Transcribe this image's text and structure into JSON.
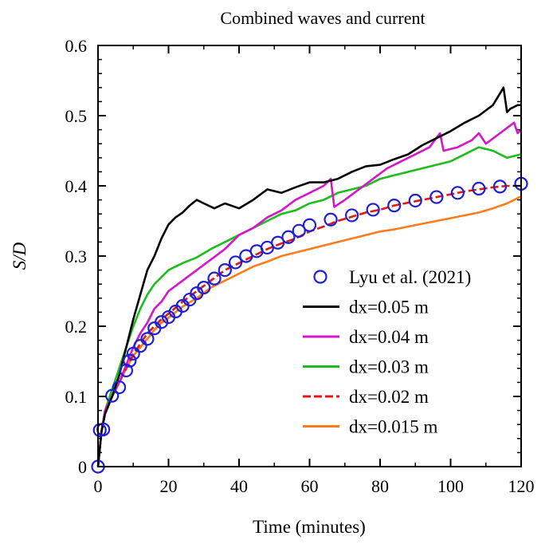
{
  "chart_data": {
    "type": "line",
    "title": "Combined waves and current",
    "xlabel": "Time (minutes)",
    "ylabel": "S/D",
    "xlim": [
      0,
      120
    ],
    "ylim": [
      0,
      0.6
    ],
    "x_ticks": [
      "0",
      "20",
      "40",
      "60",
      "80",
      "100",
      "120"
    ],
    "y_ticks": [
      "0",
      "0.1",
      "0.2",
      "0.3",
      "0.4",
      "0.5",
      "0.6"
    ],
    "grid": false,
    "legend_position": "lower-right",
    "series": [
      {
        "name": "Lyu et al. (2021)",
        "type": "scatter",
        "marker": "open-circle",
        "color": "#1f1fd6",
        "x": [
          0,
          0.5,
          1.5,
          4,
          6,
          8,
          9,
          10,
          12,
          14,
          16,
          18,
          20,
          22,
          24,
          26,
          28,
          30,
          33,
          36,
          39,
          42,
          45,
          48,
          51,
          54,
          57,
          60,
          66,
          72,
          78,
          84,
          90,
          96,
          102,
          108,
          114,
          120
        ],
        "y": [
          0,
          0.052,
          0.053,
          0.101,
          0.113,
          0.137,
          0.151,
          0.161,
          0.172,
          0.182,
          0.197,
          0.206,
          0.213,
          0.221,
          0.229,
          0.238,
          0.247,
          0.255,
          0.268,
          0.28,
          0.291,
          0.3,
          0.307,
          0.312,
          0.319,
          0.327,
          0.336,
          0.344,
          0.352,
          0.358,
          0.366,
          0.372,
          0.379,
          0.384,
          0.39,
          0.396,
          0.399,
          0.403
        ]
      },
      {
        "name": "dx=0.05 m",
        "color": "#000000",
        "x": [
          0,
          1,
          2,
          4,
          6,
          8,
          10,
          12,
          14,
          16,
          18,
          20,
          22,
          24,
          26,
          28,
          30,
          33,
          36,
          40,
          44,
          48,
          52,
          56,
          60,
          64,
          68,
          72,
          76,
          80,
          84,
          88,
          92,
          96,
          100,
          104,
          108,
          112,
          115,
          116,
          117,
          119,
          120
        ],
        "y": [
          0,
          0.05,
          0.075,
          0.1,
          0.13,
          0.17,
          0.21,
          0.245,
          0.28,
          0.3,
          0.325,
          0.345,
          0.355,
          0.362,
          0.372,
          0.38,
          0.375,
          0.368,
          0.375,
          0.368,
          0.38,
          0.395,
          0.39,
          0.398,
          0.405,
          0.405,
          0.41,
          0.42,
          0.428,
          0.43,
          0.438,
          0.445,
          0.458,
          0.468,
          0.478,
          0.49,
          0.5,
          0.515,
          0.54,
          0.505,
          0.51,
          0.515,
          0.515
        ]
      },
      {
        "name": "dx=0.04 m",
        "color": "#d616c8",
        "x": [
          0,
          1,
          2,
          4,
          6,
          8,
          10,
          12,
          14,
          16,
          18,
          20,
          24,
          28,
          32,
          36,
          40,
          44,
          48,
          52,
          56,
          60,
          64,
          66,
          67,
          70,
          74,
          78,
          82,
          86,
          90,
          94,
          97,
          98,
          102,
          106,
          108,
          110,
          114,
          118,
          119,
          120
        ],
        "y": [
          0,
          0.05,
          0.08,
          0.1,
          0.12,
          0.145,
          0.17,
          0.19,
          0.205,
          0.225,
          0.235,
          0.25,
          0.265,
          0.28,
          0.295,
          0.31,
          0.33,
          0.34,
          0.355,
          0.365,
          0.38,
          0.39,
          0.4,
          0.41,
          0.37,
          0.38,
          0.395,
          0.41,
          0.425,
          0.435,
          0.445,
          0.455,
          0.475,
          0.45,
          0.455,
          0.465,
          0.475,
          0.46,
          0.475,
          0.49,
          0.475,
          0.48
        ]
      },
      {
        "name": "dx=0.03 m",
        "color": "#1cbd1c",
        "x": [
          0,
          1,
          2,
          4,
          6,
          8,
          10,
          12,
          14,
          16,
          18,
          20,
          24,
          28,
          32,
          36,
          40,
          44,
          48,
          52,
          56,
          60,
          64,
          68,
          72,
          76,
          80,
          84,
          88,
          92,
          96,
          100,
          104,
          108,
          112,
          116,
          120
        ],
        "y": [
          0,
          0.05,
          0.08,
          0.11,
          0.14,
          0.17,
          0.2,
          0.225,
          0.245,
          0.26,
          0.27,
          0.28,
          0.29,
          0.298,
          0.31,
          0.32,
          0.33,
          0.34,
          0.35,
          0.36,
          0.365,
          0.375,
          0.38,
          0.39,
          0.395,
          0.4,
          0.41,
          0.415,
          0.42,
          0.425,
          0.43,
          0.435,
          0.445,
          0.455,
          0.45,
          0.44,
          0.445
        ]
      },
      {
        "name": "dx=0.02 m",
        "color": "#e01818",
        "dashed": true,
        "x": [
          0,
          1,
          2,
          4,
          6,
          8,
          10,
          12,
          14,
          16,
          18,
          20,
          24,
          28,
          32,
          36,
          40,
          44,
          48,
          52,
          56,
          60,
          64,
          68,
          72,
          76,
          80,
          84,
          88,
          92,
          96,
          100,
          104,
          108,
          112,
          116,
          120
        ],
        "y": [
          0,
          0.05,
          0.075,
          0.1,
          0.12,
          0.14,
          0.16,
          0.175,
          0.19,
          0.2,
          0.21,
          0.218,
          0.235,
          0.25,
          0.265,
          0.28,
          0.29,
          0.3,
          0.31,
          0.318,
          0.325,
          0.335,
          0.342,
          0.35,
          0.356,
          0.362,
          0.366,
          0.372,
          0.376,
          0.38,
          0.384,
          0.388,
          0.392,
          0.395,
          0.398,
          0.4,
          0.4
        ]
      },
      {
        "name": "dx=0.015 m",
        "color": "#ff7b1c",
        "x": [
          0,
          1,
          2,
          4,
          6,
          8,
          10,
          12,
          14,
          16,
          18,
          20,
          24,
          28,
          32,
          36,
          40,
          44,
          48,
          52,
          56,
          60,
          64,
          68,
          72,
          76,
          80,
          84,
          88,
          92,
          96,
          100,
          104,
          108,
          112,
          116,
          120
        ],
        "y": [
          0,
          0.05,
          0.075,
          0.1,
          0.12,
          0.14,
          0.158,
          0.17,
          0.182,
          0.195,
          0.205,
          0.212,
          0.228,
          0.24,
          0.255,
          0.265,
          0.275,
          0.285,
          0.292,
          0.3,
          0.305,
          0.31,
          0.315,
          0.32,
          0.325,
          0.33,
          0.335,
          0.338,
          0.342,
          0.346,
          0.35,
          0.354,
          0.358,
          0.362,
          0.368,
          0.375,
          0.385
        ]
      }
    ]
  }
}
